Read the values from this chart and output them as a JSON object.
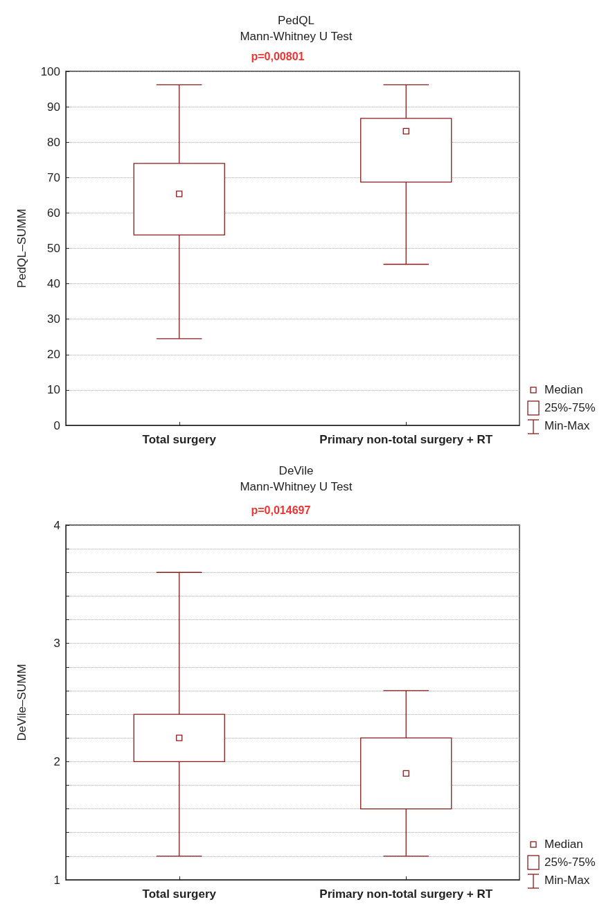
{
  "chart_data": [
    {
      "type": "box",
      "title": "PedQL",
      "subtitle": "Mann-Whitney U Test",
      "ylabel": "PedQL–SUMM",
      "annotations": [
        "p=0,00801",
        "Median",
        "25%-75%",
        "Min-Max"
      ],
      "categories": [
        "Total surgery",
        "Primary non-total surgery + RT"
      ],
      "series": [
        {
          "color": "#8b1a1a",
          "boxes": [
            {
              "low": 24.5,
              "q1": 53.8,
              "median": 65.4,
              "q3": 74,
              "high": 96.2
            },
            {
              "low": 45.5,
              "q1": 68.7,
              "median": 83.1,
              "q3": 86.7,
              "high": 96.2
            }
          ]
        }
      ],
      "ylim": [
        0,
        100
      ],
      "yticks": [
        0,
        10,
        20,
        30,
        40,
        50,
        60,
        70,
        80,
        90,
        100
      ],
      "grid": "y"
    },
    {
      "type": "box",
      "title": "DeVile",
      "subtitle": "Mann-Whitney U Test",
      "ylabel": "DeVile–SUMM",
      "annotations": [
        "p=0,014697",
        "Median",
        "25%-75%",
        "Min-Max"
      ],
      "categories": [
        "Total surgery",
        "Primary non-total surgery + RT"
      ],
      "series": [
        {
          "color": "#8b1a1a",
          "boxes": [
            {
              "low": 1.2,
              "q1": 2.0,
              "median": 2.2,
              "q3": 2.4,
              "high": 3.6
            },
            {
              "low": 1.2,
              "q1": 1.6,
              "median": 1.9,
              "q3": 2.2,
              "high": 2.6
            }
          ]
        }
      ],
      "ylim": [
        1,
        4
      ],
      "yticks": [
        1,
        {
          "value": 1.2,
          "label": null
        },
        {
          "value": 1.4,
          "label": null
        },
        {
          "value": 1.6,
          "label": null
        },
        {
          "value": 1.8,
          "label": null
        },
        2,
        {
          "value": 2.2,
          "label": null
        },
        {
          "value": 2.4,
          "label": null
        },
        {
          "value": 2.6,
          "label": null
        },
        {
          "value": 2.8,
          "label": null
        },
        3,
        {
          "value": 3.2,
          "label": null
        },
        {
          "value": 3.4,
          "label": null
        },
        {
          "value": 3.6,
          "label": null
        },
        {
          "value": 3.8,
          "label": null
        },
        4
      ],
      "grid": "y"
    }
  ]
}
